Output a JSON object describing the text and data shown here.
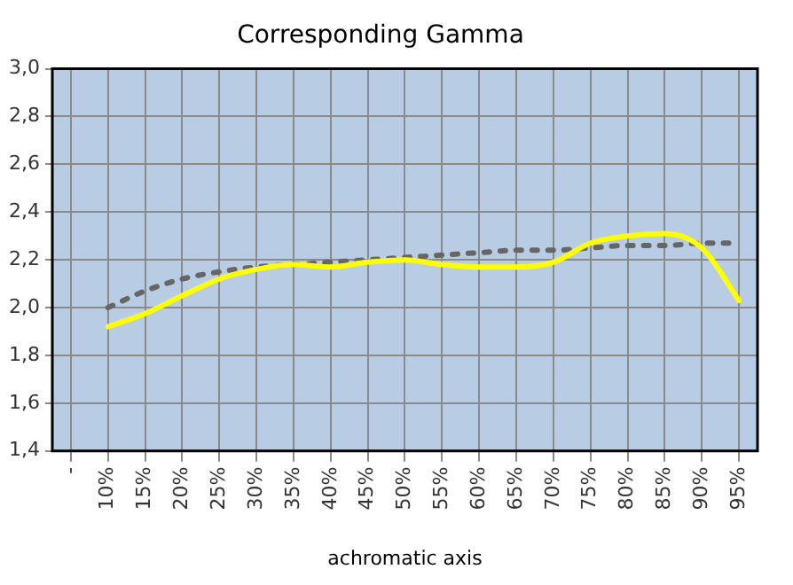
{
  "chart_data": {
    "type": "line",
    "title": "Corresponding Gamma",
    "xlabel": "achromatic axis",
    "categories": [
      "-",
      "10%",
      "15%",
      "20%",
      "25%",
      "30%",
      "35%",
      "40%",
      "45%",
      "50%",
      "55%",
      "60%",
      "65%",
      "70%",
      "75%",
      "80%",
      "85%",
      "90%",
      "95%"
    ],
    "series": [
      {
        "color": "#ffff00",
        "line_style": "solid",
        "values": [
          null,
          1.92,
          1.975,
          2.05,
          2.12,
          2.16,
          2.18,
          2.17,
          2.19,
          2.2,
          2.18,
          2.17,
          2.17,
          2.19,
          2.27,
          2.3,
          2.31,
          2.25,
          2.03
        ]
      },
      {
        "color": "#666666",
        "line_style": "dotted",
        "values": [
          null,
          2.0,
          2.07,
          2.12,
          2.15,
          2.17,
          2.18,
          2.19,
          2.2,
          2.21,
          2.22,
          2.23,
          2.24,
          2.24,
          2.25,
          2.26,
          2.26,
          2.27,
          2.27
        ]
      }
    ],
    "ylim": [
      1.4,
      3.0
    ],
    "yticks": [
      {
        "value": 1.4,
        "label": "1,4"
      },
      {
        "value": 1.6,
        "label": "1,6"
      },
      {
        "value": 1.8,
        "label": "1,8"
      },
      {
        "value": 2.0,
        "label": "2,0"
      },
      {
        "value": 2.2,
        "label": "2,2"
      },
      {
        "value": 2.4,
        "label": "2,4"
      },
      {
        "value": 2.6,
        "label": "2,6"
      },
      {
        "value": 2.8,
        "label": "2,8"
      },
      {
        "value": 3.0,
        "label": "3,0"
      }
    ],
    "grid": true,
    "legend": false,
    "marker": "none"
  }
}
